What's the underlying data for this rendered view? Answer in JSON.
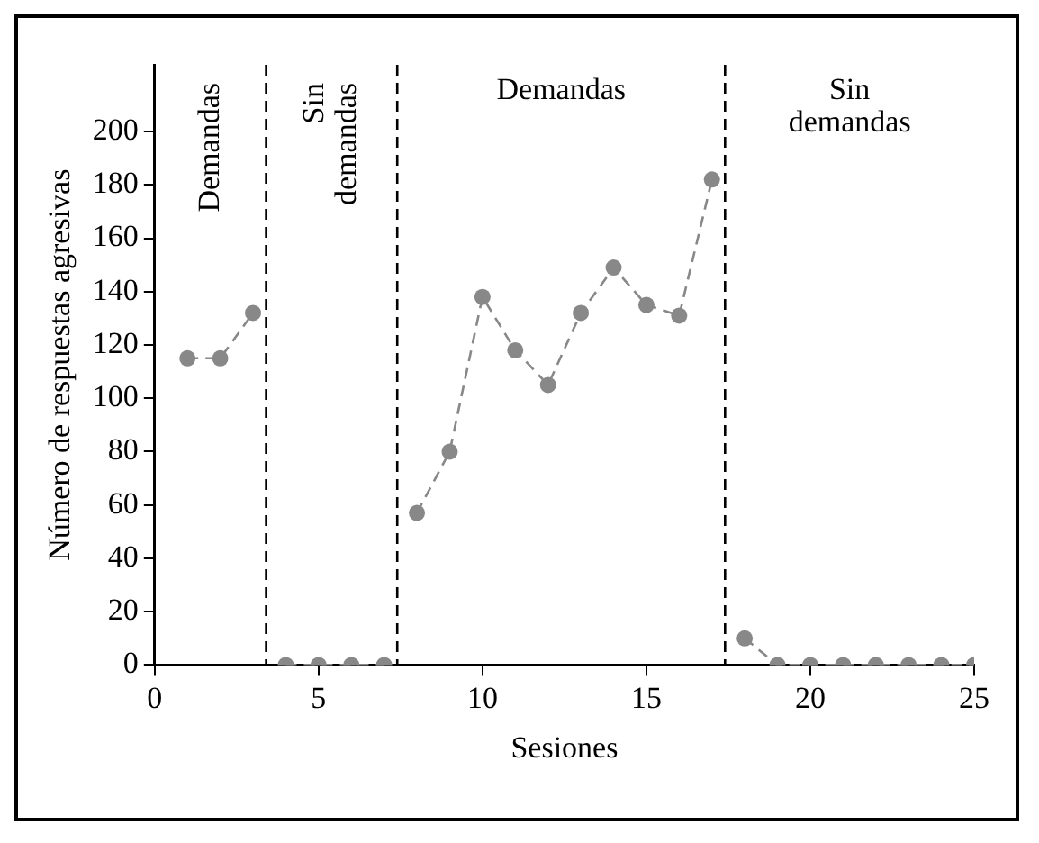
{
  "chart_data": {
    "type": "line",
    "xlabel": "Sesiones",
    "ylabel": "Número de respuestas agresivas",
    "xlim": [
      0,
      25
    ],
    "xticks": [
      0,
      5,
      10,
      15,
      20,
      25
    ],
    "ylim": [
      0,
      225
    ],
    "yticks": [
      0,
      20,
      40,
      60,
      80,
      100,
      120,
      140,
      160,
      180,
      200
    ],
    "grid": false,
    "legend": false,
    "marker": "circle",
    "line_style": "dashed",
    "series": [
      {
        "color": "#888888",
        "x": [
          1,
          2,
          3
        ],
        "values": [
          115,
          115,
          132
        ]
      },
      {
        "color": "#888888",
        "x": [
          4,
          5,
          6,
          7
        ],
        "values": [
          0,
          0,
          0,
          0
        ]
      },
      {
        "color": "#888888",
        "x": [
          8,
          9,
          10,
          11,
          12,
          13,
          14,
          15,
          16,
          17
        ],
        "values": [
          57,
          80,
          138,
          118,
          105,
          132,
          149,
          135,
          131,
          182
        ]
      },
      {
        "color": "#888888",
        "x": [
          18,
          19,
          20,
          21,
          22,
          23,
          24,
          25
        ],
        "values": [
          10,
          0,
          0,
          0,
          0,
          0,
          0,
          0
        ]
      }
    ],
    "ref_lines": [
      {
        "axis": "x",
        "value": 3.4,
        "color": "#000000",
        "line_style": "dashed"
      },
      {
        "axis": "x",
        "value": 7.4,
        "color": "#000000",
        "line_style": "dashed"
      },
      {
        "axis": "x",
        "value": 17.4,
        "color": "#000000",
        "line_style": "dashed"
      }
    ],
    "annotations": [
      "Demandas",
      "Sin\ndemandas",
      "Demandas",
      "Sin\ndemandas"
    ]
  }
}
